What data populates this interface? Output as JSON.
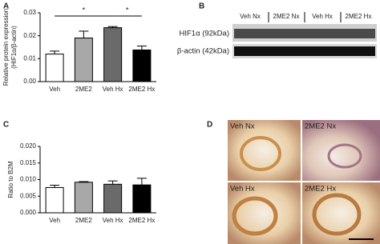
{
  "panel_labels": [
    "A",
    "B",
    "C",
    "D"
  ],
  "chart_data": [
    {
      "type": "bar",
      "ylabel": [
        "Relative protein expression",
        "(HIF1α/β-actin)"
      ],
      "categories": [
        "Veh",
        "2ME2",
        "Veh Hx",
        "2ME2 Hx"
      ],
      "values": [
        0.012,
        0.019,
        0.0235,
        0.0138
      ],
      "errors": [
        0.0013,
        0.003,
        0.0005,
        0.0017
      ],
      "colors": [
        "#ffffff",
        "#a8a8a8",
        "#6a6a6a",
        "#000000"
      ],
      "ylim": [
        0,
        0.03
      ],
      "yticks": [
        {
          "value": 0,
          "label": "0.00"
        },
        {
          "value": 0.01,
          "label": "0.01"
        },
        {
          "value": 0.02,
          "label": "0.02"
        },
        {
          "value": 0.03,
          "label": "0.03"
        }
      ],
      "annotations": [
        "*",
        "*"
      ]
    },
    {
      "type": "bar",
      "ylabel": [
        "Ratio to B2M"
      ],
      "categories": [
        "Veh",
        "2ME2",
        "Veh Hx",
        "2ME2 Hx"
      ],
      "values": [
        0.0076,
        0.0092,
        0.0086,
        0.0084
      ],
      "errors": [
        0.0007,
        0.0002,
        0.001,
        0.002
      ],
      "colors": [
        "#ffffff",
        "#a8a8a8",
        "#6a6a6a",
        "#000000"
      ],
      "ylim": [
        0,
        0.02
      ],
      "yticks": [
        {
          "value": 0,
          "label": "0.000"
        },
        {
          "value": 0.005,
          "label": "0.005"
        },
        {
          "value": 0.01,
          "label": "0.010"
        },
        {
          "value": 0.015,
          "label": "0.015"
        },
        {
          "value": 0.02,
          "label": "0.020"
        }
      ]
    }
  ],
  "blot": {
    "lanes": [
      "Veh Nx",
      "2ME2 Nx",
      "Veh Hx",
      "2ME2 Hx"
    ],
    "rows": [
      "HIF1α (92kDa)",
      "β-actin (42kDa)"
    ]
  },
  "micrographs": [
    "Veh Nx",
    "2ME2 Nx",
    "Veh Hx",
    "2ME2 Hx"
  ]
}
